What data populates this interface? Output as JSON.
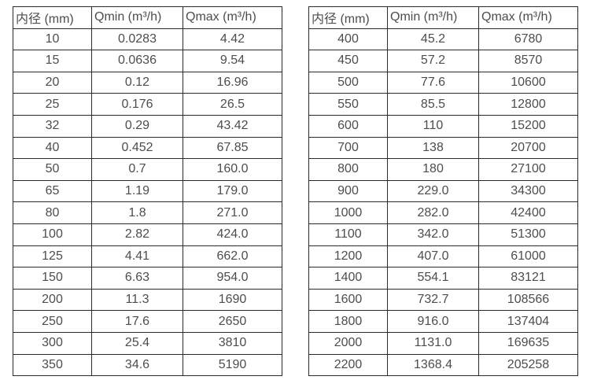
{
  "colors": {
    "background": "#ffffff",
    "border": "#2a2a2a",
    "text": "#4d4d4d"
  },
  "tables": [
    {
      "name": "flow-rate-table-small-diameters",
      "headers": [
        "内径 (mm)",
        "Qmin (m³/h)",
        "Qmax (m³/h)"
      ],
      "rows": [
        [
          "10",
          "0.0283",
          "4.42"
        ],
        [
          "15",
          "0.0636",
          "9.54"
        ],
        [
          "20",
          "0.12",
          "16.96"
        ],
        [
          "25",
          "0.176",
          "26.5"
        ],
        [
          "32",
          "0.29",
          "43.42"
        ],
        [
          "40",
          "0.452",
          "67.85"
        ],
        [
          "50",
          "0.7",
          "160.0"
        ],
        [
          "65",
          "1.19",
          "179.0"
        ],
        [
          "80",
          "1.8",
          "271.0"
        ],
        [
          "100",
          "2.82",
          "424.0"
        ],
        [
          "125",
          "4.41",
          "662.0"
        ],
        [
          "150",
          "6.63",
          "954.0"
        ],
        [
          "200",
          "11.3",
          "1690"
        ],
        [
          "250",
          "17.6",
          "2650"
        ],
        [
          "300",
          "25.4",
          "3810"
        ],
        [
          "350",
          "34.6",
          "5190"
        ]
      ]
    },
    {
      "name": "flow-rate-table-large-diameters",
      "headers": [
        "内径 (mm)",
        "Qmin (m³/h)",
        "Qmax (m³/h)"
      ],
      "rows": [
        [
          "400",
          "45.2",
          "6780"
        ],
        [
          "450",
          "57.2",
          "8570"
        ],
        [
          "500",
          "77.6",
          "10600"
        ],
        [
          "550",
          "85.5",
          "12800"
        ],
        [
          "600",
          "110",
          "15200"
        ],
        [
          "700",
          "138",
          "20700"
        ],
        [
          "800",
          "180",
          "27100"
        ],
        [
          "900",
          "229.0",
          "34300"
        ],
        [
          "1000",
          "282.0",
          "42400"
        ],
        [
          "1100",
          "342.0",
          "51300"
        ],
        [
          "1200",
          "407.0",
          "61000"
        ],
        [
          "1400",
          "554.1",
          "83121"
        ],
        [
          "1600",
          "732.7",
          "108566"
        ],
        [
          "1800",
          "916.0",
          "137404"
        ],
        [
          "2000",
          "1131.0",
          "169635"
        ],
        [
          "2200",
          "1368.4",
          "205258"
        ]
      ]
    }
  ]
}
